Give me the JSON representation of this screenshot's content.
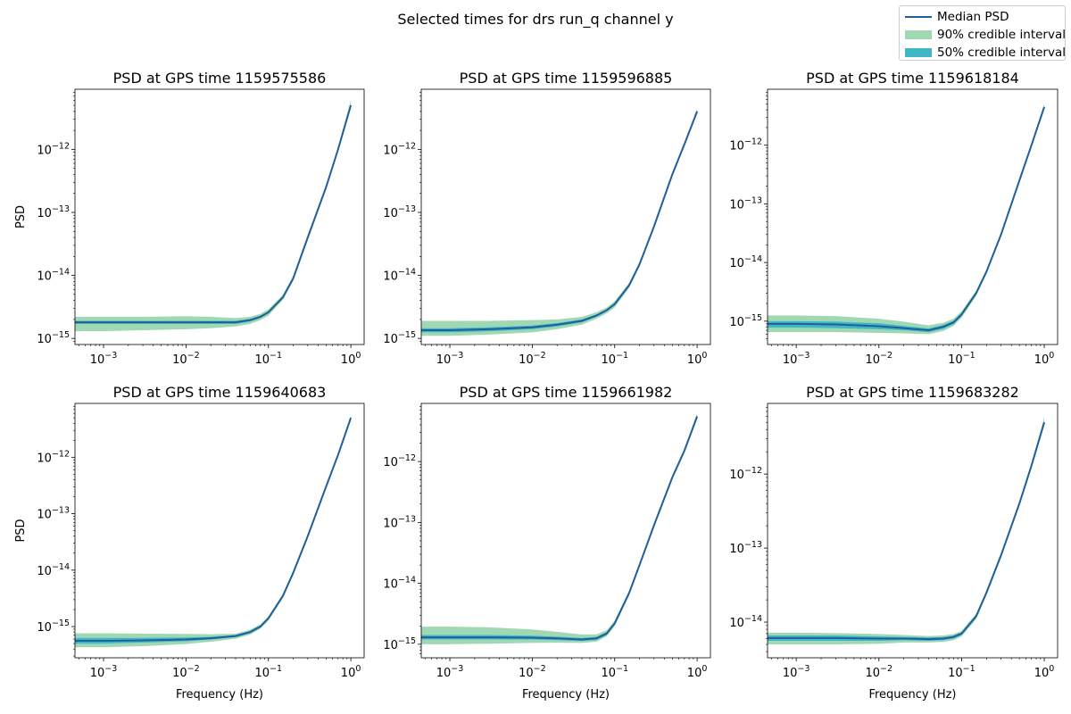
{
  "figure": {
    "suptitle": "Selected times for drs run_q channel y",
    "xlabel": "Frequency (Hz)",
    "ylabel": "PSD"
  },
  "legend": {
    "items": [
      {
        "label": "Median PSD",
        "kind": "line",
        "color": "#1f5f9c"
      },
      {
        "label": "90% credible interval",
        "kind": "patch",
        "color": "#a0d8b3"
      },
      {
        "label": "50% credible interval",
        "kind": "patch",
        "color": "#41b6c4"
      }
    ]
  },
  "chart_data": [
    {
      "type": "line",
      "title": "PSD at GPS time 1159575586",
      "xscale": "log",
      "yscale": "log",
      "xlim": [
        0.00045,
        1.45
      ],
      "ylim": [
        8e-16,
        9e-12
      ],
      "xticks": [
        0.001,
        0.01,
        0.1,
        1
      ],
      "xtick_labels": [
        "10^-3",
        "10^-2",
        "10^-1",
        "10^0"
      ],
      "yticks": [
        1e-15,
        1e-14,
        1e-13,
        1e-12
      ],
      "ytick_labels": [
        "10^-15",
        "10^-14",
        "10^-13",
        "10^-12"
      ],
      "x": [
        0.00045,
        0.001,
        0.003,
        0.01,
        0.02,
        0.04,
        0.06,
        0.08,
        0.1,
        0.15,
        0.2,
        0.3,
        0.5,
        0.7,
        1.0
      ],
      "median": [
        1.8e-15,
        1.8e-15,
        1.8e-15,
        1.8e-15,
        1.8e-15,
        1.8e-15,
        1.95e-15,
        2.2e-15,
        2.6e-15,
        4.5e-15,
        9e-15,
        4e-14,
        2.5e-13,
        1e-12,
        5e-12
      ],
      "ci50_low": [
        1.7e-15,
        1.7e-15,
        1.7e-15,
        1.7e-15,
        1.7e-15,
        1.7e-15,
        1.85e-15,
        2.1e-15,
        2.5e-15,
        4.3e-15,
        8.6e-15,
        3.8e-14,
        2.4e-13,
        9.6e-13,
        4.8e-12
      ],
      "ci50_high": [
        1.9e-15,
        1.9e-15,
        1.9e-15,
        1.9e-15,
        1.9e-15,
        1.9e-15,
        2.05e-15,
        2.3e-15,
        2.7e-15,
        4.7e-15,
        9.4e-15,
        4.2e-14,
        2.6e-13,
        1.04e-12,
        5.2e-12
      ],
      "ci90_low": [
        1.3e-15,
        1.3e-15,
        1.35e-15,
        1.4e-15,
        1.45e-15,
        1.55e-15,
        1.7e-15,
        1.95e-15,
        2.3e-15,
        4.1e-15,
        8.2e-15,
        3.6e-14,
        2.3e-13,
        9.2e-13,
        4.6e-12
      ],
      "ci90_high": [
        2.2e-15,
        2.2e-15,
        2.2e-15,
        2.25e-15,
        2.2e-15,
        2.1e-15,
        2.2e-15,
        2.45e-15,
        2.9e-15,
        4.9e-15,
        9.8e-15,
        4.4e-14,
        2.7e-13,
        1.1e-12,
        6e-12
      ]
    },
    {
      "type": "line",
      "title": "PSD at GPS time 1159596885",
      "xscale": "log",
      "yscale": "log",
      "xlim": [
        0.00045,
        1.45
      ],
      "ylim": [
        8e-16,
        9e-12
      ],
      "xticks": [
        0.001,
        0.01,
        0.1,
        1
      ],
      "xtick_labels": [
        "10^-3",
        "10^-2",
        "10^-1",
        "10^0"
      ],
      "yticks": [
        1e-15,
        1e-14,
        1e-13,
        1e-12
      ],
      "ytick_labels": [
        "10^-15",
        "10^-14",
        "10^-13",
        "10^-12"
      ],
      "x": [
        0.00045,
        0.001,
        0.003,
        0.01,
        0.02,
        0.04,
        0.06,
        0.08,
        0.1,
        0.15,
        0.2,
        0.3,
        0.5,
        0.7,
        1.0
      ],
      "median": [
        1.35e-15,
        1.35e-15,
        1.4e-15,
        1.5e-15,
        1.65e-15,
        1.9e-15,
        2.3e-15,
        2.8e-15,
        3.5e-15,
        7e-15,
        1.5e-14,
        6e-14,
        4e-13,
        1.2e-12,
        4e-12
      ],
      "ci50_low": [
        1.25e-15,
        1.25e-15,
        1.3e-15,
        1.4e-15,
        1.55e-15,
        1.8e-15,
        2.2e-15,
        2.7e-15,
        3.35e-15,
        6.7e-15,
        1.44e-14,
        5.8e-14,
        3.85e-13,
        1.16e-12,
        3.85e-12
      ],
      "ci50_high": [
        1.45e-15,
        1.45e-15,
        1.5e-15,
        1.6e-15,
        1.75e-15,
        2e-15,
        2.4e-15,
        2.9e-15,
        3.65e-15,
        7.3e-15,
        1.56e-14,
        6.2e-14,
        4.15e-13,
        1.24e-12,
        4.15e-12
      ],
      "ci90_low": [
        1.1e-15,
        1.1e-15,
        1.15e-15,
        1.25e-15,
        1.4e-15,
        1.65e-15,
        2.05e-15,
        2.5e-15,
        3.1e-15,
        6.4e-15,
        1.38e-14,
        5.6e-14,
        3.7e-13,
        1.12e-12,
        3.7e-12
      ],
      "ci90_high": [
        1.9e-15,
        1.9e-15,
        1.9e-15,
        1.95e-15,
        2e-15,
        2.2e-15,
        2.6e-15,
        3.1e-15,
        3.9e-15,
        7.6e-15,
        1.62e-14,
        6.4e-14,
        4.3e-13,
        1.28e-12,
        4.5e-12
      ]
    },
    {
      "type": "line",
      "title": "PSD at GPS time 1159618184",
      "xscale": "log",
      "yscale": "log",
      "xlim": [
        0.00045,
        1.45
      ],
      "ylim": [
        4e-16,
        9e-12
      ],
      "xticks": [
        0.001,
        0.01,
        0.1,
        1
      ],
      "xtick_labels": [
        "10^-3",
        "10^-2",
        "10^-1",
        "10^0"
      ],
      "yticks": [
        1e-15,
        1e-14,
        1e-13,
        1e-12
      ],
      "ytick_labels": [
        "10^-15",
        "10^-14",
        "10^-13",
        "10^-12"
      ],
      "x": [
        0.00045,
        0.001,
        0.003,
        0.01,
        0.02,
        0.04,
        0.06,
        0.08,
        0.1,
        0.15,
        0.2,
        0.3,
        0.5,
        0.7,
        1.0
      ],
      "median": [
        9e-16,
        9e-16,
        8.8e-16,
        8.2e-16,
        7.6e-16,
        7e-16,
        8e-16,
        9.5e-16,
        1.3e-15,
        3e-15,
        7e-15,
        3e-14,
        2.5e-13,
        1e-12,
        4.5e-12
      ],
      "ci50_low": [
        7.8e-16,
        7.8e-16,
        7.6e-16,
        7.3e-16,
        7e-16,
        6.5e-16,
        7.4e-16,
        8.9e-16,
        1.22e-15,
        2.85e-15,
        6.7e-15,
        2.9e-14,
        2.4e-13,
        9.6e-13,
        4.3e-12
      ],
      "ci50_high": [
        1e-15,
        1e-15,
        9.8e-16,
        9.2e-16,
        8.3e-16,
        7.5e-16,
        8.6e-16,
        1.02e-15,
        1.38e-15,
        3.15e-15,
        7.3e-15,
        3.1e-14,
        2.6e-13,
        1.04e-12,
        4.7e-12
      ],
      "ci90_low": [
        6.5e-16,
        6.5e-16,
        6.5e-16,
        6.3e-16,
        6.2e-16,
        6e-16,
        6.8e-16,
        8.3e-16,
        1.15e-15,
        2.7e-15,
        6.4e-15,
        2.8e-14,
        2.3e-13,
        9.2e-13,
        4.1e-12
      ],
      "ci90_high": [
        1.25e-15,
        1.25e-15,
        1.22e-15,
        1.1e-15,
        9.8e-16,
        8.5e-16,
        9.4e-16,
        1.1e-15,
        1.48e-15,
        3.3e-15,
        7.6e-15,
        3.2e-14,
        2.7e-13,
        1.08e-12,
        5e-12
      ]
    },
    {
      "type": "line",
      "title": "PSD at GPS time 1159640683",
      "xscale": "log",
      "yscale": "log",
      "xlim": [
        0.00045,
        1.45
      ],
      "ylim": [
        2.8e-16,
        9e-12
      ],
      "xticks": [
        0.001,
        0.01,
        0.1,
        1
      ],
      "xtick_labels": [
        "10^-3",
        "10^-2",
        "10^-1",
        "10^0"
      ],
      "yticks": [
        1e-15,
        1e-14,
        1e-13,
        1e-12
      ],
      "ytick_labels": [
        "10^-15",
        "10^-14",
        "10^-13",
        "10^-12"
      ],
      "x": [
        0.00045,
        0.001,
        0.003,
        0.01,
        0.02,
        0.04,
        0.06,
        0.08,
        0.1,
        0.15,
        0.2,
        0.3,
        0.5,
        0.7,
        1.0
      ],
      "median": [
        5.6e-16,
        5.6e-16,
        5.7e-16,
        5.9e-16,
        6.2e-16,
        6.8e-16,
        8e-16,
        1e-15,
        1.4e-15,
        3.5e-15,
        9e-15,
        4e-14,
        3e-13,
        1.1e-12,
        5e-12
      ],
      "ci50_low": [
        5e-16,
        5e-16,
        5.2e-16,
        5.5e-16,
        5.9e-16,
        6.5e-16,
        7.6e-16,
        9.6e-16,
        1.34e-15,
        3.35e-15,
        8.6e-15,
        3.85e-14,
        2.9e-13,
        1.06e-12,
        4.8e-12
      ],
      "ci50_high": [
        6.3e-16,
        6.3e-16,
        6.3e-16,
        6.4e-16,
        6.6e-16,
        7.1e-16,
        8.4e-16,
        1.05e-15,
        1.46e-15,
        3.65e-15,
        9.4e-15,
        4.15e-14,
        3.1e-13,
        1.14e-12,
        5.2e-12
      ],
      "ci90_low": [
        4.3e-16,
        4.3e-16,
        4.5e-16,
        4.9e-16,
        5.4e-16,
        6.1e-16,
        7.2e-16,
        9.2e-16,
        1.28e-15,
        3.2e-15,
        8.2e-15,
        3.7e-14,
        2.8e-13,
        1.02e-12,
        4.6e-12
      ],
      "ci90_high": [
        7.6e-16,
        7.6e-16,
        7.5e-16,
        7.4e-16,
        7.3e-16,
        7.5e-16,
        8.8e-16,
        1.1e-15,
        1.52e-15,
        3.8e-15,
        9.8e-15,
        4.3e-14,
        3.2e-13,
        1.18e-12,
        5.6e-12
      ]
    },
    {
      "type": "line",
      "title": "PSD at GPS time 1159661982",
      "xscale": "log",
      "yscale": "log",
      "xlim": [
        0.00045,
        1.45
      ],
      "ylim": [
        6e-16,
        9e-12
      ],
      "xticks": [
        0.001,
        0.01,
        0.1,
        1
      ],
      "xtick_labels": [
        "10^-3",
        "10^-2",
        "10^-1",
        "10^0"
      ],
      "yticks": [
        1e-15,
        1e-14,
        1e-13,
        1e-12
      ],
      "ytick_labels": [
        "10^-15",
        "10^-14",
        "10^-13",
        "10^-12"
      ],
      "x": [
        0.00045,
        0.001,
        0.003,
        0.01,
        0.02,
        0.04,
        0.06,
        0.08,
        0.1,
        0.15,
        0.2,
        0.3,
        0.5,
        0.7,
        1.0
      ],
      "median": [
        1.3e-15,
        1.3e-15,
        1.3e-15,
        1.28e-15,
        1.25e-15,
        1.2e-15,
        1.25e-15,
        1.5e-15,
        2.2e-15,
        7e-15,
        2e-14,
        9e-14,
        5.5e-13,
        1.5e-12,
        5.5e-12
      ],
      "ci50_low": [
        1.2e-15,
        1.2e-15,
        1.2e-15,
        1.2e-15,
        1.17e-15,
        1.13e-15,
        1.18e-15,
        1.42e-15,
        2.1e-15,
        6.7e-15,
        1.92e-14,
        8.6e-14,
        5.3e-13,
        1.44e-12,
        5.3e-12
      ],
      "ci50_high": [
        1.42e-15,
        1.42e-15,
        1.42e-15,
        1.38e-15,
        1.33e-15,
        1.27e-15,
        1.32e-15,
        1.58e-15,
        2.3e-15,
        7.3e-15,
        2.08e-14,
        9.4e-14,
        5.7e-13,
        1.56e-12,
        5.7e-12
      ],
      "ci90_low": [
        1e-15,
        1e-15,
        1.02e-15,
        1.05e-15,
        1.06e-15,
        1.05e-15,
        1.1e-15,
        1.35e-15,
        2e-15,
        6.4e-15,
        1.84e-14,
        8.3e-14,
        5.1e-13,
        1.38e-12,
        5.1e-12
      ],
      "ci90_high": [
        1.95e-15,
        1.95e-15,
        1.9e-15,
        1.75e-15,
        1.6e-15,
        1.45e-15,
        1.45e-15,
        1.7e-15,
        2.45e-15,
        7.6e-15,
        2.16e-14,
        9.7e-14,
        5.9e-13,
        1.62e-12,
        6.2e-12
      ]
    },
    {
      "type": "line",
      "title": "PSD at GPS time 1159683282",
      "xscale": "log",
      "yscale": "log",
      "xlim": [
        0.00045,
        1.45
      ],
      "ylim": [
        3.3e-15,
        9e-12
      ],
      "xticks": [
        0.001,
        0.01,
        0.1,
        1
      ],
      "xtick_labels": [
        "10^-3",
        "10^-2",
        "10^-1",
        "10^0"
      ],
      "yticks": [
        1e-14,
        1e-13,
        1e-12
      ],
      "ytick_labels": [
        "10^-14",
        "10^-13",
        "10^-12"
      ],
      "x": [
        0.00045,
        0.001,
        0.003,
        0.01,
        0.02,
        0.04,
        0.06,
        0.08,
        0.1,
        0.15,
        0.2,
        0.3,
        0.5,
        0.7,
        1.0
      ],
      "median": [
        6.1e-15,
        6.1e-15,
        6.1e-15,
        6e-15,
        6e-15,
        5.9e-15,
        6e-15,
        6.3e-15,
        7e-15,
        1.2e-14,
        2.5e-14,
        8e-14,
        4e-13,
        1.3e-12,
        5e-12
      ],
      "ci50_low": [
        5.6e-15,
        5.6e-15,
        5.6e-15,
        5.6e-15,
        5.7e-15,
        5.6e-15,
        5.7e-15,
        6e-15,
        6.7e-15,
        1.15e-14,
        2.4e-14,
        7.7e-14,
        3.85e-13,
        1.25e-12,
        4.8e-12
      ],
      "ci50_high": [
        6.6e-15,
        6.6e-15,
        6.6e-15,
        6.4e-15,
        6.3e-15,
        6.2e-15,
        6.3e-15,
        6.6e-15,
        7.3e-15,
        1.25e-14,
        2.6e-14,
        8.3e-14,
        4.15e-13,
        1.35e-12,
        5.2e-12
      ],
      "ci90_low": [
        5e-15,
        5e-15,
        5e-15,
        5.1e-15,
        5.3e-15,
        5.3e-15,
        5.4e-15,
        5.7e-15,
        6.4e-15,
        1.1e-14,
        2.3e-14,
        7.4e-14,
        3.7e-13,
        1.2e-12,
        4.6e-12
      ],
      "ci90_high": [
        7.2e-15,
        7.2e-15,
        7.1e-15,
        6.9e-15,
        6.7e-15,
        6.5e-15,
        6.6e-15,
        6.9e-15,
        7.6e-15,
        1.3e-14,
        2.7e-14,
        8.6e-14,
        4.3e-13,
        1.4e-12,
        5.8e-12
      ]
    }
  ]
}
